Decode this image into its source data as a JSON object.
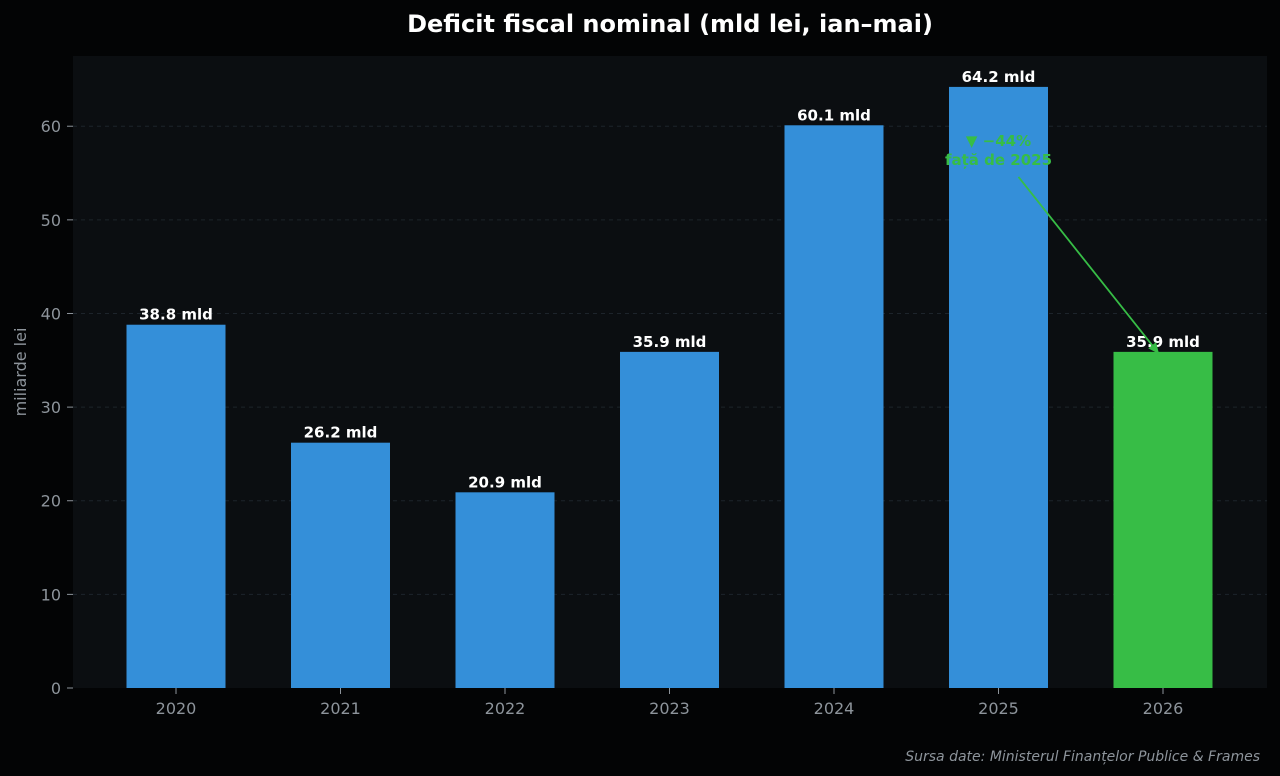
{
  "chart_data": {
    "type": "bar",
    "title": "Deficit fiscal nominal  (mld lei, ian–mai)",
    "ylabel": "miliarde lei",
    "xlabel": "",
    "categories": [
      "2020",
      "2021",
      "2022",
      "2023",
      "2024",
      "2025",
      "2026"
    ],
    "values": [
      38.8,
      26.2,
      20.9,
      35.9,
      60.1,
      64.2,
      35.9
    ],
    "data_labels": [
      "38.8 mld",
      "26.2 mld",
      "20.9 mld",
      "35.9 mld",
      "60.1 mld",
      "64.2 mld",
      "35.9 mld"
    ],
    "ylim": [
      0,
      67.5
    ],
    "yticks": [
      0,
      10,
      20,
      30,
      40,
      50,
      60
    ],
    "grid": true,
    "bar_color": "#348fd9",
    "highlight_color": "#37bd46",
    "highlight_index": 6,
    "annotation": {
      "line1": "▼ −44%",
      "line2": "față de 2025",
      "color": "#37bd46",
      "anchor_x": 5,
      "anchor_y": 56.5,
      "target_x": 6,
      "target_y": 35.9
    },
    "source": "Sursa date: Ministerul Finanțelor Publice & Frames"
  }
}
